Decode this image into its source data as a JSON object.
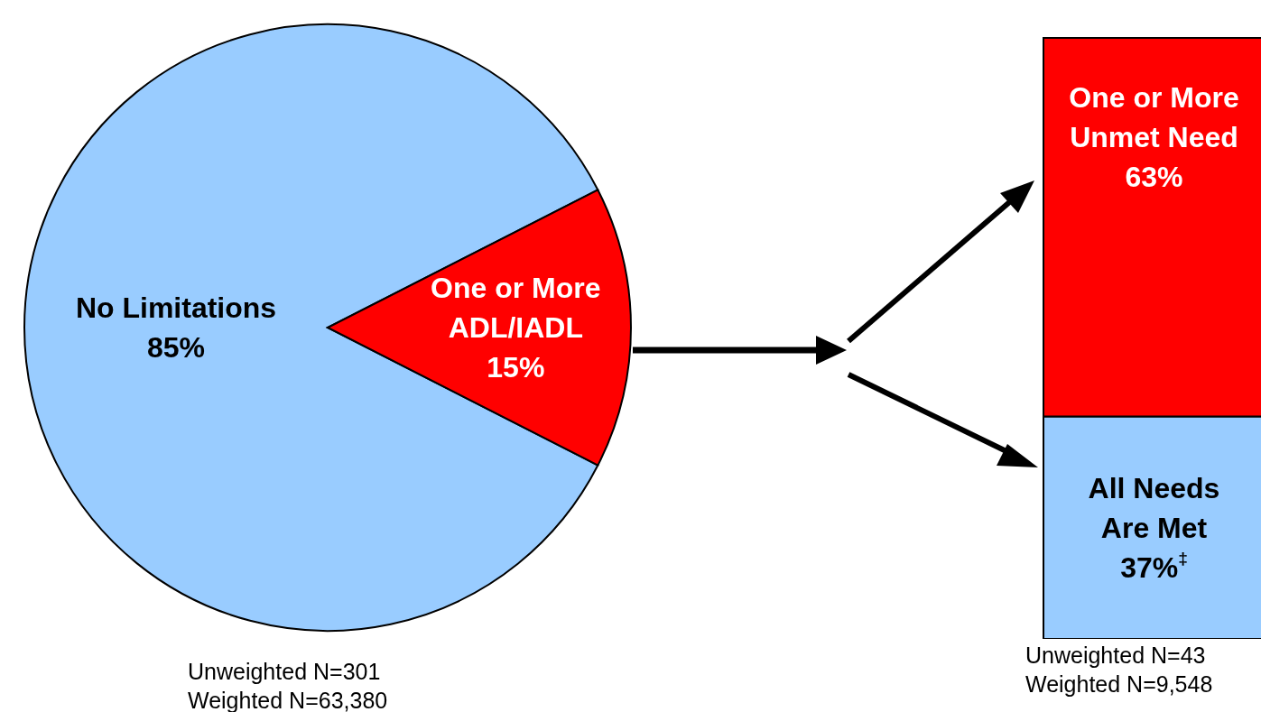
{
  "chart_data": [
    {
      "type": "pie",
      "categories": [
        "No Limitations",
        "One or More ADL/IADL"
      ],
      "values": [
        85,
        15
      ],
      "colors": [
        "#99ccff",
        "#ff0000"
      ],
      "value_labels": [
        "85%",
        "15%"
      ],
      "annotations": [
        "Unweighted N=301",
        "Weighted N=63,380"
      ]
    },
    {
      "type": "bar",
      "stacked": true,
      "categories": [
        null
      ],
      "series": [
        {
          "name": "All Needs Are Met",
          "color": "#99ccff",
          "values": [
            37
          ],
          "value_labels": [
            "37%$^{‡}$"
          ]
        },
        {
          "name": "One or More Unmet Need",
          "color": "#ff0000",
          "values": [
            63
          ],
          "value_labels": [
            "63%"
          ]
        }
      ],
      "annotations": [
        "Unweighted N=43",
        "Weighted N=9,548"
      ]
    }
  ]
}
